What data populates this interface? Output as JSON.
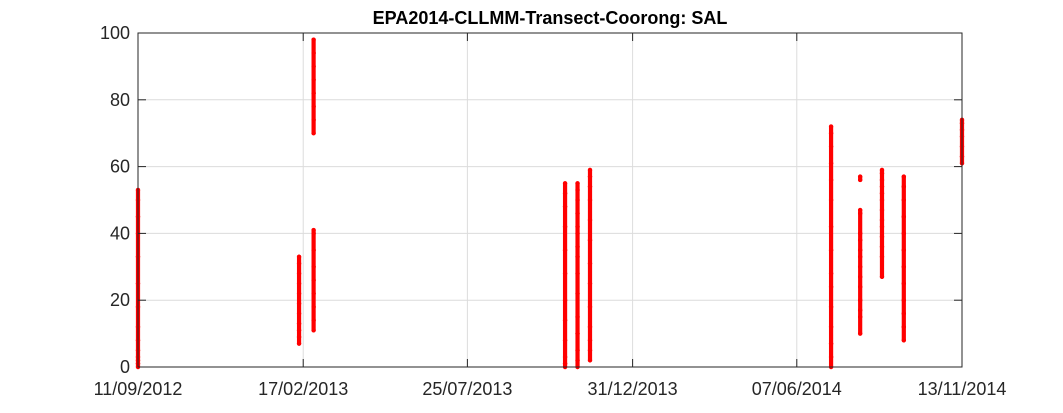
{
  "chart_data": {
    "type": "scatter",
    "title": "EPA2014-CLLMM-Transect-Coorong: SAL",
    "xlabel": "",
    "ylabel": "",
    "xlim": [
      "2012-09-11",
      "2014-11-13"
    ],
    "ylim": [
      0,
      100
    ],
    "x_ticks": [
      "11/09/2012",
      "17/02/2013",
      "25/07/2013",
      "31/12/2013",
      "07/06/2014",
      "13/11/2014"
    ],
    "y_ticks": [
      "0",
      "20",
      "40",
      "60",
      "80",
      "100"
    ],
    "grid": true,
    "marker_color": "#ff0000",
    "series": [
      {
        "points": [
          {
            "date": "2012-09-11",
            "values": [
              0,
              1,
              2,
              3,
              5,
              8,
              12,
              18,
              25,
              33,
              40,
              45,
              50,
              53
            ]
          },
          {
            "date": "2013-02-13",
            "values": [
              7,
              9,
              11,
              13,
              16,
              19,
              22,
              25,
              28,
              31,
              33
            ]
          },
          {
            "date": "2013-02-27",
            "values": [
              11,
              14,
              18,
              22,
              26,
              30,
              35,
              40,
              41,
              70,
              74,
              78,
              82,
              86,
              90,
              94,
              98
            ]
          },
          {
            "date": "2013-10-27",
            "values": [
              0,
              1,
              3,
              8,
              14,
              20,
              28,
              35,
              42,
              48,
              52,
              55
            ]
          },
          {
            "date": "2013-11-08",
            "values": [
              0,
              2,
              5,
              10,
              15,
              22,
              28,
              33,
              36,
              40,
              42,
              46,
              50,
              53,
              55
            ]
          },
          {
            "date": "2013-11-20",
            "values": [
              2,
              5,
              8,
              12,
              18,
              25,
              31,
              38,
              44,
              50,
              54,
              57,
              59
            ]
          },
          {
            "date": "2014-07-10",
            "values": [
              0,
              3,
              7,
              12,
              18,
              24,
              28,
              35,
              42,
              50,
              56,
              61,
              66,
              70,
              72
            ]
          },
          {
            "date": "2014-08-07",
            "values": [
              10,
              15,
              17,
              20,
              24,
              27,
              30,
              33,
              35,
              38,
              40,
              46,
              47,
              56,
              57
            ]
          },
          {
            "date": "2014-08-28",
            "values": [
              27,
              33,
              36,
              39,
              42,
              44,
              47,
              50,
              52,
              54,
              56,
              58,
              59
            ]
          },
          {
            "date": "2014-09-18",
            "values": [
              8,
              12,
              16,
              20,
              25,
              30,
              35,
              40,
              45,
              50,
              54,
              57
            ]
          },
          {
            "date": "2014-11-13",
            "values": [
              61,
              63,
              66,
              69,
              71,
              73,
              74
            ]
          }
        ]
      }
    ]
  }
}
